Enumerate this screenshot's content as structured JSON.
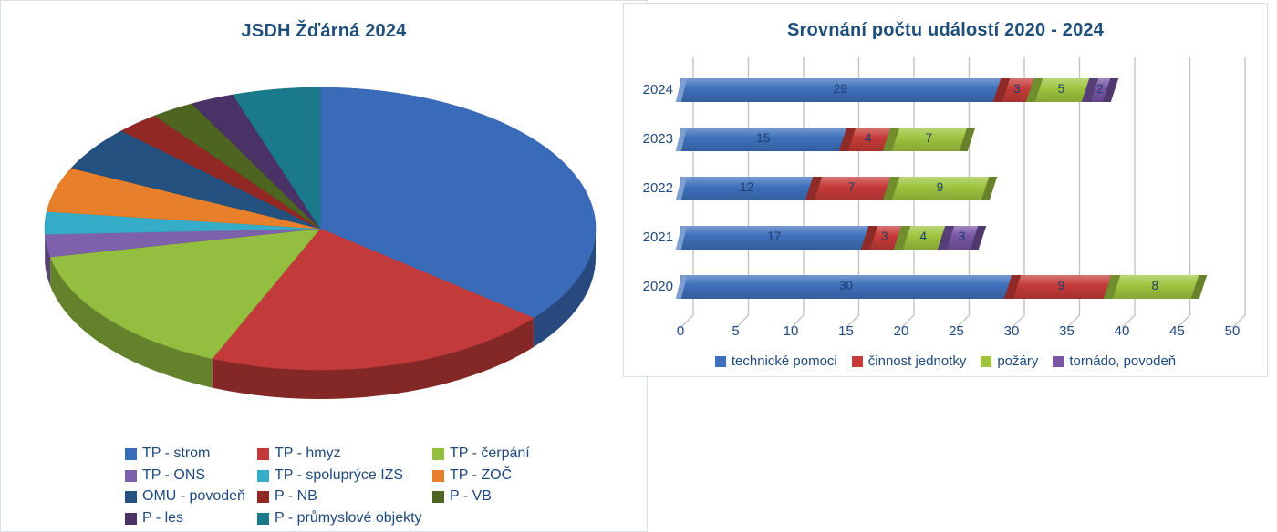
{
  "colors": {
    "title_text": "#1F4E79",
    "body_text": "#1F497D",
    "bar_label_text": "#1C3E6E",
    "gridline": "#C3C3C3",
    "panel_border": "#D8DEE7",
    "background": "#FFFFFF"
  },
  "chart_data": [
    {
      "type": "pie",
      "style": "3d",
      "title": "JSDH Žďárná 2024",
      "legend_position": "bottom-left",
      "slices": [
        {
          "label": "TP - strom",
          "value": 14,
          "color": "#3A6BB8"
        },
        {
          "label": "TP - hmyz",
          "value": 8,
          "color": "#C23B3A"
        },
        {
          "label": "TP - čerpání",
          "value": 6,
          "color": "#93BE3F"
        },
        {
          "label": "TP - ONS",
          "value": 1,
          "color": "#7E61AB"
        },
        {
          "label": "TP - spoluprýce IZS",
          "value": 1,
          "color": "#35ACC8"
        },
        {
          "label": "TP - ZOČ",
          "value": 2,
          "color": "#E8802B"
        },
        {
          "label": "OMU - povodeň",
          "value": 2,
          "color": "#24517F"
        },
        {
          "label": "P - NB",
          "value": 1,
          "color": "#922824"
        },
        {
          "label": "P - VB",
          "value": 1,
          "color": "#4E6522"
        },
        {
          "label": "P - les",
          "value": 1,
          "color": "#4A3166"
        },
        {
          "label": "P - průmyslové objekty",
          "value": 2,
          "color": "#1A7A8B"
        }
      ]
    },
    {
      "type": "bar",
      "style": "3d",
      "orientation": "horizontal",
      "stacked": true,
      "title": "Srovnání počtu událostí 2020 - 2024",
      "categories": [
        "2024",
        "2023",
        "2022",
        "2021",
        "2020"
      ],
      "series": [
        {
          "name": "technické pomoci",
          "color": "#3E70BB",
          "values": [
            29,
            15,
            12,
            17,
            30
          ]
        },
        {
          "name": "činnost jednotky",
          "color": "#C53B38",
          "values": [
            3,
            4,
            7,
            3,
            9
          ]
        },
        {
          "name": "požáry",
          "color": "#9EC43F",
          "values": [
            5,
            7,
            9,
            4,
            8
          ]
        },
        {
          "name": "tornádo, povodeň",
          "color": "#7856A4",
          "values": [
            2,
            0,
            0,
            3,
            0
          ]
        }
      ],
      "xlim": [
        0,
        50
      ],
      "xticks": [
        0,
        5,
        10,
        15,
        20,
        25,
        30,
        35,
        40,
        45,
        50
      ],
      "grid": true,
      "legend_position": "bottom"
    }
  ]
}
